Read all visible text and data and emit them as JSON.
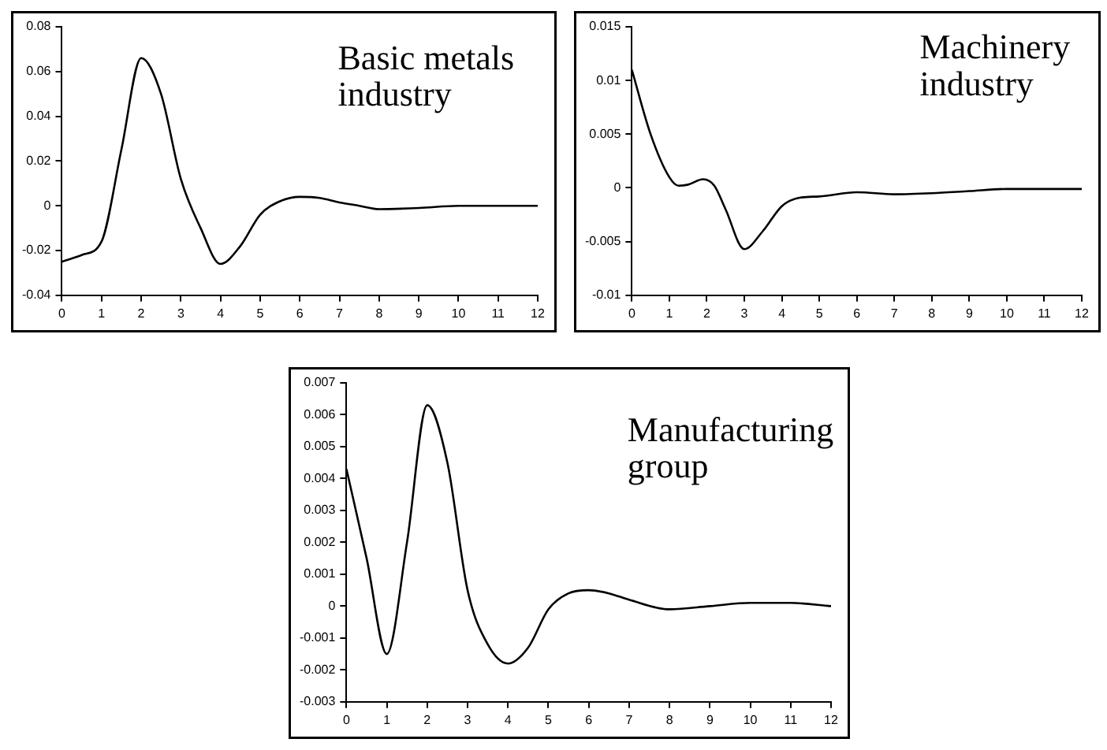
{
  "chart_data": [
    {
      "type": "line",
      "title": "Basic metals industry",
      "color": "#000000",
      "x": [
        0,
        0.5,
        1,
        1.5,
        2,
        2.5,
        3,
        3.5,
        4,
        4.5,
        5,
        5.5,
        6,
        6.5,
        7,
        7.5,
        8,
        9,
        10,
        11,
        12
      ],
      "values": [
        -0.025,
        -0.022,
        -0.016,
        0.025,
        0.066,
        0.05,
        0.012,
        -0.01,
        -0.026,
        -0.018,
        -0.004,
        0.002,
        0.004,
        0.0035,
        0.0015,
        0,
        -0.0015,
        -0.001,
        0,
        0,
        0
      ],
      "xlim": [
        0,
        12
      ],
      "xticks": [
        0,
        1,
        2,
        3,
        4,
        5,
        6,
        7,
        8,
        9,
        10,
        11,
        12
      ],
      "ylim": [
        -0.04,
        0.08
      ],
      "yticks": [
        -0.04,
        -0.02,
        0,
        0.02,
        0.04,
        0.06,
        0.08
      ]
    },
    {
      "type": "line",
      "title": "Machinery industry",
      "color": "#000000",
      "x": [
        0,
        0.5,
        1,
        1.25,
        1.5,
        1.9,
        2.2,
        2.5,
        3,
        3.5,
        4,
        4.5,
        5,
        6,
        7,
        8,
        9,
        10,
        11,
        12
      ],
      "values": [
        0.011,
        0.005,
        0.001,
        0.0002,
        0.0003,
        0.0008,
        0.0002,
        -0.002,
        -0.0057,
        -0.004,
        -0.0017,
        -0.0009,
        -0.0008,
        -0.0004,
        -0.0006,
        -0.0005,
        -0.0003,
        -0.0001,
        -0.0001,
        -0.0001
      ],
      "xlim": [
        0,
        12
      ],
      "xticks": [
        0,
        1,
        2,
        3,
        4,
        5,
        6,
        7,
        8,
        9,
        10,
        11,
        12
      ],
      "ylim": [
        -0.01,
        0.015
      ],
      "yticks": [
        -0.01,
        -0.005,
        0,
        0.005,
        0.01,
        0.015
      ]
    },
    {
      "type": "line",
      "title": "Manufacturing group",
      "color": "#000000",
      "x": [
        0,
        0.5,
        1,
        1.5,
        2,
        2.5,
        3,
        3.5,
        4,
        4.5,
        5,
        5.5,
        6,
        6.5,
        7,
        8,
        9,
        10,
        11,
        12
      ],
      "values": [
        0.0043,
        0.0015,
        -0.0015,
        0.002,
        0.0063,
        0.0045,
        0.0005,
        -0.0012,
        -0.0018,
        -0.0013,
        -0.0001,
        0.0004,
        0.0005,
        0.0004,
        0.0002,
        -0.0001,
        0,
        0.0001,
        0.0001,
        0
      ],
      "xlim": [
        0,
        12
      ],
      "xticks": [
        0,
        1,
        2,
        3,
        4,
        5,
        6,
        7,
        8,
        9,
        10,
        11,
        12
      ],
      "ylim": [
        -0.003,
        0.007
      ],
      "yticks": [
        -0.003,
        -0.002,
        -0.001,
        0,
        0.001,
        0.002,
        0.003,
        0.004,
        0.005,
        0.006,
        0.007
      ]
    }
  ]
}
